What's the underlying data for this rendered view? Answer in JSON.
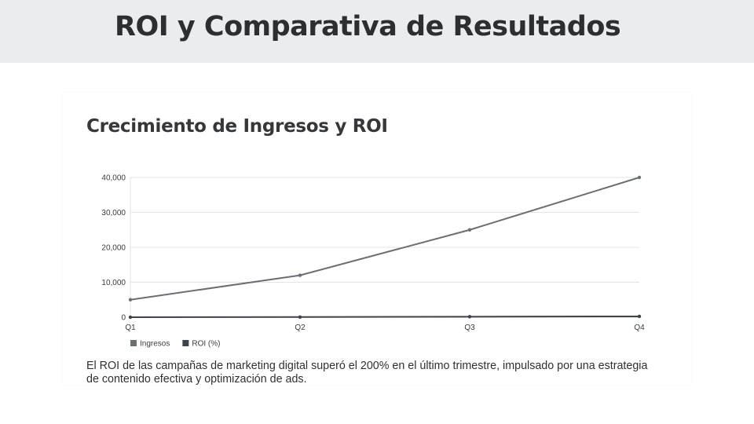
{
  "page": {
    "title": "ROI y Comparativa de Resultados"
  },
  "card": {
    "title": "Crecimiento de Ingresos y ROI",
    "caption": "El ROI de las campañas de marketing digital superó el 200% en el último trimestre, impulsado por una estrategia de contenido efectiva y optimización de ads."
  },
  "chart_data": {
    "type": "line",
    "categories": [
      "Q1",
      "Q2",
      "Q3",
      "Q4"
    ],
    "series": [
      {
        "name": "Ingresos",
        "values": [
          5000,
          12000,
          25000,
          40000
        ],
        "color": "#6b6e73"
      },
      {
        "name": "ROI (%)",
        "values": [
          0,
          50,
          150,
          230
        ],
        "color": "#3f4247"
      }
    ],
    "yticks": [
      "0",
      "10,000",
      "20,000",
      "30,000",
      "40,000"
    ],
    "ylim": [
      0,
      40000
    ],
    "grid": true,
    "legend_position": "bottom-left"
  }
}
